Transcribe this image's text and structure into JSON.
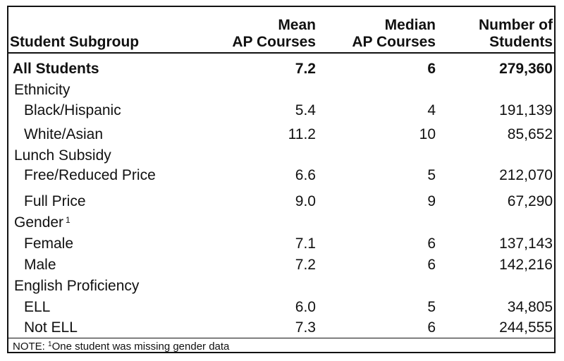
{
  "headers": {
    "subgroup": "Student Subgroup",
    "mean_line1": "Mean",
    "mean_line2": "AP Courses",
    "median_line1": "Median",
    "median_line2": "AP Courses",
    "count_line1": "Number of",
    "count_line2": "Students"
  },
  "all": {
    "label": "All Students",
    "mean": "7.2",
    "median": "6",
    "count": "279,360"
  },
  "ethnicity": {
    "label": "Ethnicity",
    "rows": [
      {
        "label": "Black/Hispanic",
        "mean": "5.4",
        "median": "4",
        "count": "191,139"
      },
      {
        "label": "White/Asian",
        "mean": "11.2",
        "median": "10",
        "count": "85,652"
      }
    ]
  },
  "lunch": {
    "label": "Lunch Subsidy",
    "rows": [
      {
        "label": "Free/Reduced Price",
        "mean": "6.6",
        "median": "5",
        "count": "212,070"
      },
      {
        "label": "Full Price",
        "mean": "9.0",
        "median": "9",
        "count": "67,290"
      }
    ]
  },
  "gender": {
    "label": "Gender",
    "footnote_mark": "1",
    "rows": [
      {
        "label": "Female",
        "mean": "7.1",
        "median": "6",
        "count": "137,143"
      },
      {
        "label": "Male",
        "mean": "7.2",
        "median": "6",
        "count": "142,216"
      }
    ]
  },
  "english": {
    "label": "English Proficiency",
    "rows": [
      {
        "label": "ELL",
        "mean": "6.0",
        "median": "5",
        "count": "34,805"
      },
      {
        "label": "Not ELL",
        "mean": "7.3",
        "median": "6",
        "count": "244,555"
      }
    ]
  },
  "note": {
    "prefix": "NOTE: ",
    "mark": "1",
    "text": "One student was missing gender data"
  }
}
